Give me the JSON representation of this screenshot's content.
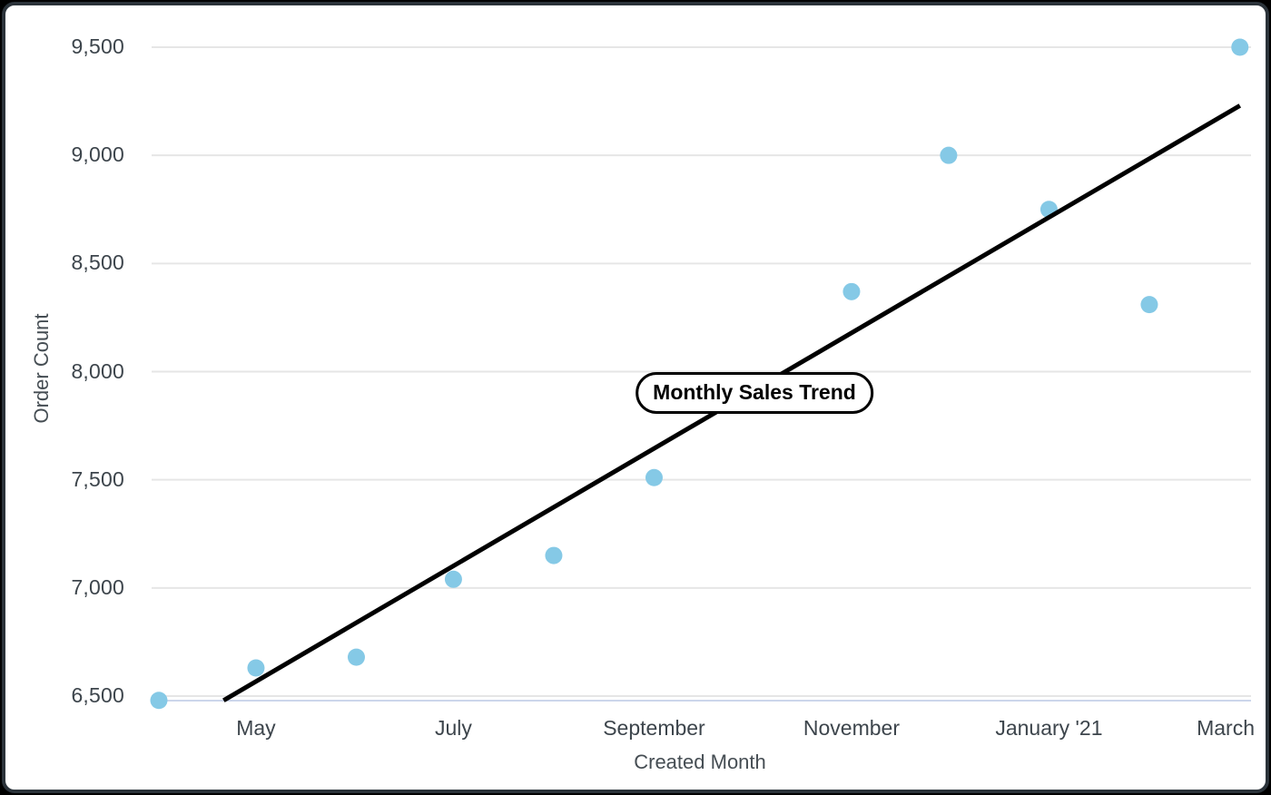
{
  "frame": {
    "outer_background": "#000000",
    "card_background": "#ffffff",
    "card_border_color": "#2b333a"
  },
  "chart_data": {
    "type": "scatter",
    "title": "",
    "xlabel": "Created Month",
    "ylabel": "Order Count",
    "grid": "horizontal-only",
    "legend": "none",
    "ylim": [
      6500,
      9500
    ],
    "x_range_months": "April 2020 - March 2021",
    "y_ticks": [
      {
        "value": 6500,
        "label": "6,500"
      },
      {
        "value": 7000,
        "label": "7,000"
      },
      {
        "value": 7500,
        "label": "7,500"
      },
      {
        "value": 8000,
        "label": "8,000"
      },
      {
        "value": 8500,
        "label": "8,500"
      },
      {
        "value": 9000,
        "label": "9,000"
      },
      {
        "value": 9500,
        "label": "9,500"
      }
    ],
    "x_ticks": [
      {
        "label": "May",
        "day": 30
      },
      {
        "label": "July",
        "day": 91
      },
      {
        "label": "September",
        "day": 153
      },
      {
        "label": "November",
        "day": 214
      },
      {
        "label": "January '21",
        "day": 275
      },
      {
        "label": "March",
        "day": 334
      }
    ],
    "points": [
      {
        "month": "April",
        "day": 0,
        "value": 6480
      },
      {
        "month": "May",
        "day": 30,
        "value": 6630
      },
      {
        "month": "June",
        "day": 61,
        "value": 6680
      },
      {
        "month": "July",
        "day": 91,
        "value": 7040
      },
      {
        "month": "August",
        "day": 122,
        "value": 7150
      },
      {
        "month": "September",
        "day": 153,
        "value": 7510
      },
      {
        "month": "November",
        "day": 214,
        "value": 8370
      },
      {
        "month": "December",
        "day": 244,
        "value": 9000
      },
      {
        "month": "January '21",
        "day": 275,
        "value": 8750
      },
      {
        "month": "February",
        "day": 306,
        "value": 8310
      },
      {
        "month": "March",
        "day": 334,
        "value": 9500
      }
    ],
    "trend_line": {
      "start": {
        "day": 20,
        "value": 6480
      },
      "end": {
        "day": 334,
        "value": 9230
      }
    },
    "annotation": {
      "label": "Monthly Sales Trend",
      "day": 184,
      "value": 7900
    },
    "colors": {
      "point": "#85c9e6",
      "trend": "#000000",
      "gridline": "#e6e6e6",
      "axis_line": "#ccd6eb",
      "tick_text": "#3d454c",
      "axis_title_text": "#454d53"
    }
  }
}
